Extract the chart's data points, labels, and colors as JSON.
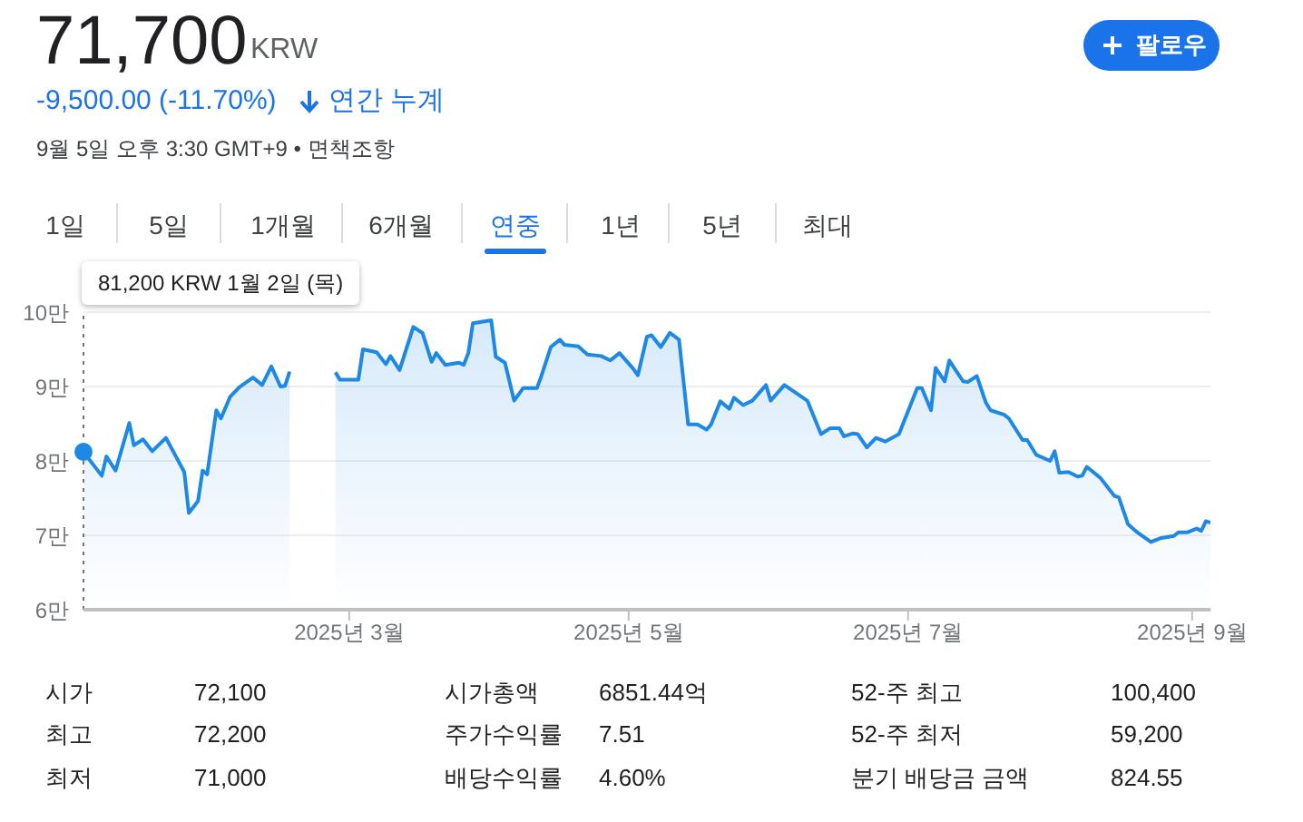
{
  "chart_data": {
    "type": "area",
    "title": "71,700",
    "annotations": [
      "KRW",
      "-9,500.00 (-11.70%)",
      "연간 누계",
      "9월 5일 오후 3:30 GMT+9 • 면책조항",
      "팔로우",
      "1일",
      "5일",
      "1개월",
      "6개월",
      "연중",
      "1년",
      "5년",
      "최대",
      "시가",
      "72,100",
      "시가총액",
      "6851.44억",
      "52-주 최고",
      "100,400",
      "최고",
      "72,200",
      "주가수익률",
      "7.51",
      "52-주 최저",
      "59,200",
      "최저",
      "71,000",
      "배당수익률",
      "4.60%",
      "분기 배당금 금액",
      "824.55",
      "81,200 KRW 1월 2일 (목)"
    ],
    "x": [
      "2025-01-02",
      "2025-01-06",
      "2025-01-07",
      "2025-01-09",
      "2025-01-12",
      "2025-01-13",
      "2025-01-15",
      "2025-01-17",
      "2025-01-20",
      "2025-01-24",
      "2025-01-25",
      "2025-01-27",
      "2025-01-28",
      "2025-01-29",
      "2025-01-31",
      "2025-02-01",
      "2025-02-03",
      "2025-02-05",
      "2025-02-08",
      "2025-02-10",
      "2025-02-12",
      "2025-02-14",
      "2025-02-15",
      "2025-02-16",
      "2025-02-20",
      "2025-02-26",
      "2025-02-27",
      "2025-03-03",
      "2025-03-04",
      "2025-03-07",
      "2025-03-09",
      "2025-03-10",
      "2025-03-12",
      "2025-03-15",
      "2025-03-17",
      "2025-03-19",
      "2025-03-20",
      "2025-03-22",
      "2025-03-25",
      "2025-03-26",
      "2025-03-27",
      "2025-03-28",
      "2025-04-01",
      "2025-04-02",
      "2025-04-04",
      "2025-04-06",
      "2025-04-08",
      "2025-04-11",
      "2025-04-12",
      "2025-04-14",
      "2025-04-16",
      "2025-04-17",
      "2025-04-20",
      "2025-04-22",
      "2025-04-25",
      "2025-04-27",
      "2025-04-29",
      "2025-05-02",
      "2025-05-03",
      "2025-05-05",
      "2025-05-06",
      "2025-05-08",
      "2025-05-10",
      "2025-05-12",
      "2025-05-14",
      "2025-05-16",
      "2025-05-18",
      "2025-05-19",
      "2025-05-21",
      "2025-05-23",
      "2025-05-24",
      "2025-05-26",
      "2025-05-28",
      "2025-05-31",
      "2025-06-01",
      "2025-06-04",
      "2025-06-09",
      "2025-06-12",
      "2025-06-14",
      "2025-06-16",
      "2025-06-17",
      "2025-06-19",
      "2025-06-20",
      "2025-06-22",
      "2025-06-24",
      "2025-06-26",
      "2025-06-29",
      "2025-07-03",
      "2025-07-04",
      "2025-07-06",
      "2025-07-07",
      "2025-07-09",
      "2025-07-10",
      "2025-07-13",
      "2025-07-14",
      "2025-07-16",
      "2025-07-18",
      "2025-07-19",
      "2025-07-22",
      "2025-07-23",
      "2025-07-26",
      "2025-07-27",
      "2025-07-29",
      "2025-08-01",
      "2025-08-02",
      "2025-08-03",
      "2025-08-05",
      "2025-08-07",
      "2025-08-08",
      "2025-08-09",
      "2025-08-12",
      "2025-08-15",
      "2025-08-16",
      "2025-08-18",
      "2025-08-20",
      "2025-08-23",
      "2025-08-25",
      "2025-08-28",
      "2025-08-29",
      "2025-08-31",
      "2025-09-02",
      "2025-09-03",
      "2025-09-04",
      "2025-09-05"
    ],
    "series": [
      {
        "color": "#1e88e5",
        "values": [
          8.12,
          7.8,
          8.06,
          7.87,
          8.51,
          8.21,
          8.29,
          8.13,
          8.31,
          7.85,
          7.3,
          7.46,
          7.87,
          7.82,
          8.68,
          8.57,
          8.86,
          8.99,
          9.12,
          9.02,
          9.27,
          9.0,
          9.01,
          9.2,
          null,
          9.19,
          9.09,
          9.09,
          9.5,
          9.46,
          9.3,
          9.41,
          9.22,
          9.8,
          9.72,
          9.33,
          9.45,
          9.29,
          9.32,
          9.29,
          9.45,
          9.85,
          9.89,
          9.4,
          9.32,
          8.81,
          8.98,
          8.98,
          9.15,
          9.53,
          9.63,
          9.56,
          9.54,
          9.43,
          9.41,
          9.35,
          9.45,
          9.24,
          9.15,
          9.67,
          9.69,
          9.53,
          9.72,
          9.63,
          8.49,
          8.49,
          8.42,
          8.49,
          8.8,
          8.7,
          8.85,
          8.75,
          8.81,
          9.02,
          8.81,
          9.02,
          8.81,
          8.36,
          8.44,
          8.44,
          8.33,
          8.37,
          8.36,
          8.18,
          8.31,
          8.26,
          8.36,
          8.98,
          8.98,
          8.68,
          9.25,
          9.07,
          9.35,
          9.07,
          9.06,
          9.14,
          8.78,
          8.68,
          8.62,
          8.57,
          8.28,
          8.28,
          8.08,
          8.0,
          8.13,
          7.84,
          7.85,
          7.79,
          7.8,
          7.92,
          7.77,
          7.53,
          7.51,
          7.15,
          7.04,
          6.91,
          6.96,
          6.99,
          7.04,
          7.04,
          7.09,
          7.06,
          7.19,
          7.17
        ]
      }
    ],
    "xlim": [
      "2025-01-02",
      "2025-09-05"
    ],
    "xticks": [
      {
        "value": "2025-03-01",
        "label": "2025년 3월"
      },
      {
        "value": "2025-05-01",
        "label": "2025년 5월"
      },
      {
        "value": "2025-07-01",
        "label": "2025년 7월"
      },
      {
        "value": "2025-09-01",
        "label": "2025년 9월"
      }
    ],
    "ylim": [
      6,
      10
    ],
    "yticks": [
      {
        "value": 6,
        "label": "6만"
      },
      {
        "value": 7,
        "label": "7만"
      },
      {
        "value": 8,
        "label": "8만"
      },
      {
        "value": 9,
        "label": "9만"
      },
      {
        "value": 10,
        "label": "10만"
      }
    ],
    "grid": "y",
    "ref_lines": [
      {
        "axis": "x",
        "value": "2025-01-02",
        "line_style": "dotted",
        "color": "#757575"
      }
    ]
  }
}
